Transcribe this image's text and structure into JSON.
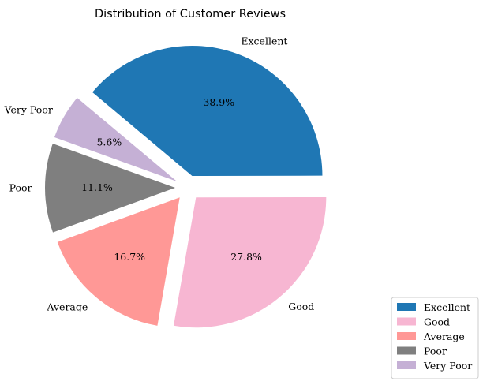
{
  "chart_data": {
    "type": "pie",
    "title": "Distribution of Customer Reviews",
    "categories": [
      "Excellent",
      "Good",
      "Average",
      "Poor",
      "Very Poor"
    ],
    "values": [
      38.9,
      27.8,
      16.7,
      11.1,
      5.6
    ],
    "percent_labels": [
      "38.9%",
      "27.8%",
      "16.7%",
      "11.1%",
      "5.6%"
    ],
    "colors": [
      "#1f77b4",
      "#f7b6d2",
      "#ff9896",
      "#7f7f7f",
      "#c5b0d5"
    ],
    "exploded": true,
    "start_angle_deg": 140,
    "direction": "clockwise",
    "legend_position": "lower-right"
  }
}
